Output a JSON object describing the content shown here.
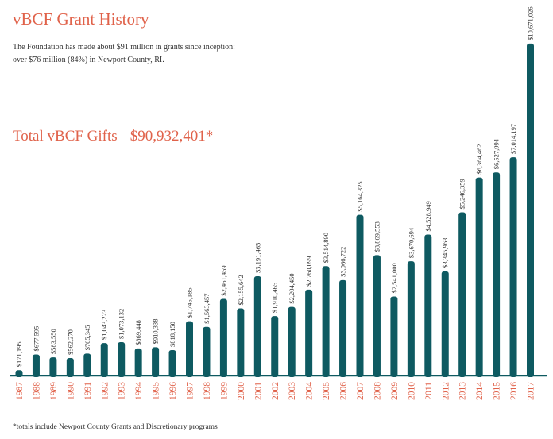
{
  "title": "vBCF Grant History",
  "subtitle_lines": [
    "The Foundation has made about $91 million in grants since inception:",
    "over $76 million (84%) in Newport County, RI."
  ],
  "total_label": "Total vBCF Gifts",
  "total_value": "$90,932,401*",
  "footnote": "*totals include Newport County Grants and Discretionary programs",
  "colors": {
    "bar": "#0e5a61",
    "accent": "#e0624a",
    "axis": "#0e5a61",
    "text": "#333333"
  },
  "chart_data": {
    "type": "bar",
    "categories": [
      "1987",
      "1988",
      "1989",
      "1990",
      "1991",
      "1992",
      "1993",
      "1994",
      "1995",
      "1996",
      "1997",
      "1998",
      "1999",
      "2000",
      "2001",
      "2002",
      "2003",
      "2004",
      "2005",
      "2006",
      "2007",
      "2008",
      "2009",
      "2010",
      "2011",
      "2012",
      "2013",
      "2014",
      "2015",
      "2016",
      "2017"
    ],
    "values": [
      171195,
      677595,
      583550,
      562270,
      705345,
      1043223,
      1073132,
      869448,
      910338,
      818150,
      1745185,
      1563457,
      2461459,
      2155642,
      3191465,
      1910465,
      2204450,
      2760099,
      3514890,
      3066722,
      5164325,
      3869553,
      2541000,
      3670694,
      4528949,
      3345963,
      5246359,
      6364462,
      6527994,
      7014197,
      10671026
    ],
    "value_labels": [
      "$171,195",
      "$677,595",
      "$583,550",
      "$562,270",
      "$705,345",
      "$1,043,223",
      "$1,073,132",
      "$869,448",
      "$910,338",
      "$818,150",
      "$1,745,185",
      "$1,563,457",
      "$2,461,459",
      "$2,155,642",
      "$3,191,465",
      "$1,910,465",
      "$2,204,450",
      "$2,760,099",
      "$3,514,890",
      "$3,066,722",
      "$5,164,325",
      "$3,869,553",
      "$2,541,000",
      "$3,670,694",
      "$4,528,949",
      "$3,345,963",
      "$5,246,359",
      "$6,364,462",
      "$6,527,994",
      "$7,014,197",
      "$10,671,026"
    ],
    "ylim": [
      0,
      11000000
    ],
    "grid": false,
    "legend": "none"
  }
}
